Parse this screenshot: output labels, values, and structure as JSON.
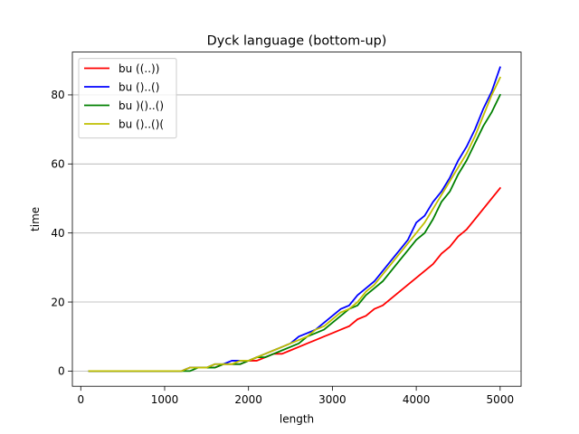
{
  "chart_data": {
    "type": "line",
    "title": "Dyck language (bottom-up)",
    "xlabel": "length",
    "ylabel": "time",
    "xlim": [
      -100,
      5250
    ],
    "ylim": [
      -4.4,
      92.4
    ],
    "xticks": [
      0,
      1000,
      2000,
      3000,
      4000,
      5000
    ],
    "yticks": [
      0,
      20,
      40,
      60,
      80
    ],
    "grid": "y-major",
    "legend_position": "top-left",
    "x": [
      100,
      200,
      300,
      400,
      500,
      600,
      700,
      800,
      900,
      1000,
      1100,
      1200,
      1300,
      1400,
      1500,
      1600,
      1700,
      1800,
      1900,
      2000,
      2100,
      2200,
      2300,
      2400,
      2500,
      2600,
      2700,
      2800,
      2900,
      3000,
      3100,
      3200,
      3300,
      3400,
      3500,
      3600,
      3700,
      3800,
      3900,
      4000,
      4100,
      4200,
      4300,
      4400,
      4500,
      4600,
      4700,
      4800,
      4900,
      5000
    ],
    "series": [
      {
        "name": "bu ((..))",
        "color": "#ff0000",
        "values": [
          0,
          0,
          0,
          0,
          0,
          0,
          0,
          0,
          0,
          0,
          0,
          0,
          1,
          1,
          1,
          1,
          2,
          2,
          2,
          3,
          3,
          4,
          5,
          5,
          6,
          7,
          8,
          9,
          10,
          11,
          12,
          13,
          15,
          16,
          18,
          19,
          21,
          23,
          25,
          27,
          29,
          31,
          34,
          36,
          39,
          41,
          44,
          47,
          50,
          53
        ]
      },
      {
        "name": "bu ()..()",
        "color": "#0000ff",
        "values": [
          0,
          0,
          0,
          0,
          0,
          0,
          0,
          0,
          0,
          0,
          0,
          0,
          1,
          1,
          1,
          2,
          2,
          3,
          3,
          3,
          4,
          5,
          6,
          7,
          8,
          10,
          11,
          12,
          14,
          16,
          18,
          19,
          22,
          24,
          26,
          29,
          32,
          35,
          38,
          43,
          45,
          49,
          52,
          56,
          61,
          65,
          70,
          76,
          81,
          88
        ]
      },
      {
        "name": "bu )()..()",
        "color": "#008000",
        "values": [
          0,
          0,
          0,
          0,
          0,
          0,
          0,
          0,
          0,
          0,
          0,
          0,
          0,
          1,
          1,
          1,
          2,
          2,
          2,
          3,
          4,
          4,
          5,
          6,
          7,
          8,
          10,
          11,
          12,
          14,
          16,
          18,
          19,
          22,
          24,
          26,
          29,
          32,
          35,
          38,
          40,
          44,
          49,
          52,
          57,
          61,
          66,
          71,
          75,
          80
        ]
      },
      {
        "name": "bu ()..()(",
        "color": "#bfbf00",
        "values": [
          0,
          0,
          0,
          0,
          0,
          0,
          0,
          0,
          0,
          0,
          0,
          0,
          1,
          1,
          1,
          2,
          2,
          2,
          3,
          3,
          4,
          5,
          6,
          7,
          8,
          9,
          10,
          12,
          13,
          15,
          17,
          18,
          20,
          23,
          25,
          28,
          31,
          34,
          37,
          40,
          43,
          47,
          51,
          55,
          59,
          63,
          68,
          74,
          80,
          85
        ]
      }
    ]
  }
}
